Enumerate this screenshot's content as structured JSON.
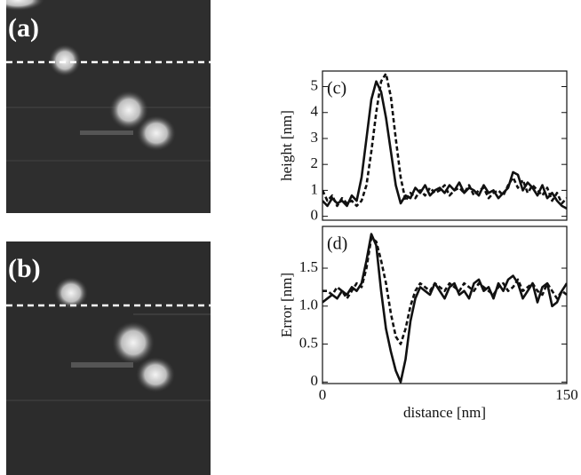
{
  "images": [
    {
      "label": "(a)"
    },
    {
      "label": "(b)"
    }
  ],
  "chart_data": [
    {
      "type": "line",
      "panel_label": "(c)",
      "y_label": "height [nm]",
      "x": [
        0,
        3,
        6,
        9,
        12,
        15,
        18,
        21,
        24,
        27,
        30,
        33,
        36,
        39,
        42,
        45,
        48,
        51,
        54,
        57,
        60,
        63,
        66,
        69,
        72,
        75,
        78,
        81,
        84,
        87,
        90,
        93,
        96,
        99,
        102,
        105,
        108,
        111,
        114,
        117,
        120,
        123,
        126,
        129,
        132,
        135,
        138,
        141,
        144,
        147,
        150
      ],
      "xlim": [
        0,
        150
      ],
      "ylim": [
        -0.15,
        5.6
      ],
      "yticks": [
        0,
        1,
        2,
        3,
        4,
        5
      ],
      "series": [
        {
          "color": "#111111",
          "dash": "solid",
          "values": [
            0.6,
            0.4,
            0.7,
            0.5,
            0.6,
            0.4,
            0.8,
            0.6,
            1.5,
            3.0,
            4.5,
            5.2,
            4.8,
            3.8,
            2.5,
            1.2,
            0.5,
            0.8,
            0.7,
            1.1,
            0.9,
            1.2,
            0.8,
            1.0,
            1.1,
            0.9,
            1.2,
            1.0,
            1.3,
            0.9,
            1.1,
            1.0,
            0.8,
            1.2,
            0.9,
            1.0,
            0.7,
            0.9,
            1.1,
            1.7,
            1.6,
            1.0,
            1.3,
            1.1,
            0.8,
            1.2,
            0.7,
            0.9,
            0.6,
            0.4,
            0.3
          ]
        },
        {
          "color": "#111111",
          "dash": "dashed",
          "values": [
            1.0,
            0.6,
            0.8,
            0.4,
            0.7,
            0.5,
            0.6,
            0.4,
            0.6,
            1.2,
            2.5,
            4.0,
            5.2,
            5.5,
            4.6,
            3.0,
            1.5,
            0.6,
            0.9,
            0.7,
            1.0,
            0.8,
            1.1,
            0.9,
            1.0,
            1.2,
            0.8,
            1.0,
            1.1,
            0.9,
            1.2,
            0.8,
            1.0,
            1.1,
            0.7,
            0.9,
            1.0,
            0.8,
            1.2,
            1.5,
            1.1,
            1.4,
            0.9,
            1.2,
            1.0,
            0.8,
            1.1,
            0.6,
            0.9,
            0.5,
            0.7
          ]
        }
      ]
    },
    {
      "type": "line",
      "panel_label": "(d)",
      "y_label": "Error [nm]",
      "x_label": "distance [nm]",
      "x": [
        0,
        3,
        6,
        9,
        12,
        15,
        18,
        21,
        24,
        27,
        30,
        33,
        36,
        39,
        42,
        45,
        48,
        51,
        54,
        57,
        60,
        63,
        66,
        69,
        72,
        75,
        78,
        81,
        84,
        87,
        90,
        93,
        96,
        99,
        102,
        105,
        108,
        111,
        114,
        117,
        120,
        123,
        126,
        129,
        132,
        135,
        138,
        141,
        144,
        147,
        150
      ],
      "xlim": [
        0,
        150
      ],
      "xticks": [
        0,
        150
      ],
      "ylim": [
        -0.02,
        2.05
      ],
      "yticks": [
        0,
        0.5,
        {
          "value": 1,
          "label": "1.0"
        },
        1.5
      ],
      "series": [
        {
          "color": "#111111",
          "dash": "solid",
          "values": [
            1.05,
            1.1,
            1.15,
            1.1,
            1.2,
            1.15,
            1.25,
            1.2,
            1.3,
            1.6,
            1.95,
            1.8,
            1.2,
            0.7,
            0.4,
            0.15,
            0.0,
            0.3,
            0.8,
            1.1,
            1.25,
            1.2,
            1.15,
            1.3,
            1.2,
            1.1,
            1.25,
            1.3,
            1.15,
            1.2,
            1.1,
            1.3,
            1.35,
            1.2,
            1.25,
            1.1,
            1.3,
            1.2,
            1.35,
            1.4,
            1.3,
            1.1,
            1.2,
            1.3,
            1.05,
            1.25,
            1.3,
            1.0,
            1.05,
            1.2,
            1.3
          ]
        },
        {
          "color": "#111111",
          "dash": "dashed",
          "values": [
            1.2,
            1.2,
            1.15,
            1.25,
            1.2,
            1.1,
            1.2,
            1.3,
            1.25,
            1.5,
            1.9,
            1.85,
            1.6,
            1.3,
            0.9,
            0.6,
            0.5,
            0.7,
            1.0,
            1.2,
            1.3,
            1.25,
            1.2,
            1.3,
            1.25,
            1.2,
            1.3,
            1.25,
            1.2,
            1.3,
            1.25,
            1.2,
            1.3,
            1.25,
            1.2,
            1.15,
            1.25,
            1.3,
            1.2,
            1.25,
            1.35,
            1.2,
            1.25,
            1.3,
            1.2,
            1.15,
            1.3,
            1.2,
            1.1,
            1.2,
            1.15
          ]
        }
      ]
    }
  ]
}
